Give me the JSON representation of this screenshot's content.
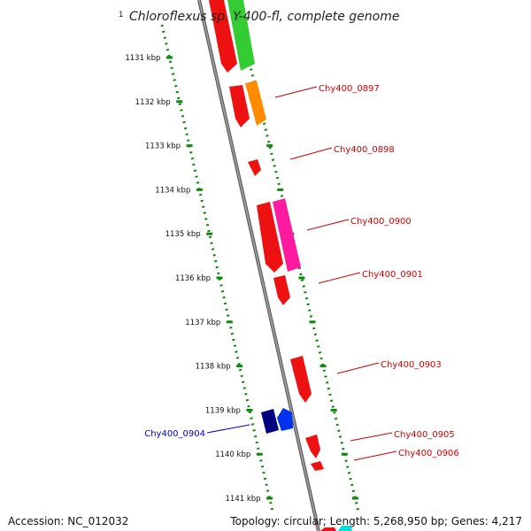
{
  "title": "Chloroflexus sp. Y-400-fl, complete genome",
  "title_prefix": "1",
  "footer": {
    "accession": "Accession: NC_012032",
    "topology": "Topology: circular; Length: 5,268,950 bp; Genes: 4,217"
  },
  "colors": {
    "axis": "#888888",
    "ruler": "#118811",
    "label_red": "#cc0000",
    "label_blue": "#0000bb"
  },
  "ruler_ticks": [
    "1131 kbp",
    "1132 kbp",
    "1133 kbp",
    "1134 kbp",
    "1135 kbp",
    "1136 kbp",
    "1137 kbp",
    "1138 kbp",
    "1139 kbp",
    "1140 kbp",
    "1141 kbp"
  ],
  "gene_labels": [
    {
      "text": "Chy400_0897",
      "color": "#cc0000"
    },
    {
      "text": "Chy400_0898",
      "color": "#cc0000"
    },
    {
      "text": "Chy400_0900",
      "color": "#cc0000"
    },
    {
      "text": "Chy400_0901",
      "color": "#cc0000"
    },
    {
      "text": "Chy400_0903",
      "color": "#cc0000"
    },
    {
      "text": "Chy400_0905",
      "color": "#cc0000"
    },
    {
      "text": "Chy400_0906",
      "color": "#cc0000"
    },
    {
      "text": "Chy400_0904",
      "color": "#0000bb"
    }
  ]
}
